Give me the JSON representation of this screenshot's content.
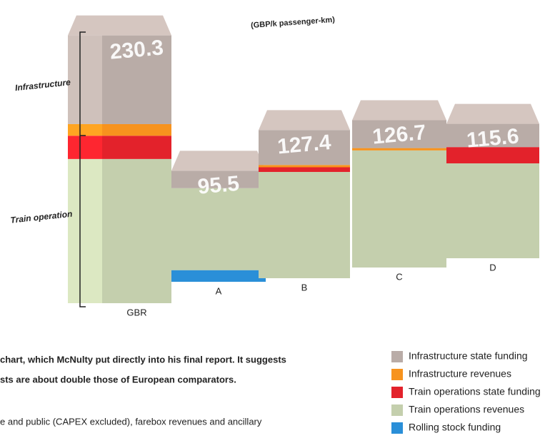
{
  "chart_data": {
    "type": "stacked-bar-3d",
    "unit": "(GBP/k passenger-km)",
    "categories": [
      "GBR",
      "A",
      "B",
      "C",
      "D"
    ],
    "totals": [
      230.3,
      95.5,
      127.4,
      126.7,
      115.6
    ],
    "series": [
      {
        "name": "Infrastructure state funding",
        "color": "#b9aca7",
        "values": [
          76.3,
          15,
          30,
          24,
          20
        ]
      },
      {
        "name": "Infrastructure revenues",
        "color": "#f7931e",
        "values": [
          10,
          0,
          2,
          2,
          0
        ]
      },
      {
        "name": "Train operations state funding",
        "color": "#e3222b",
        "values": [
          20,
          0,
          4,
          0,
          14
        ]
      },
      {
        "name": "Train operations revenues",
        "color": "#c4cfad",
        "values": [
          124,
          70.5,
          91.4,
          100.7,
          81.6
        ]
      },
      {
        "name": "Rolling stock funding",
        "color": "#2a8fd8",
        "values": [
          0,
          10,
          0,
          0,
          0
        ]
      }
    ],
    "group_labels": [
      "Infrastructure",
      "Train operation"
    ],
    "notes": [
      "chart, which McNulty put directly into his final report. It suggests",
      "sts are about double those of European comparators.",
      "e and public (CAPEX excluded), farebox revenues and ancillary"
    ]
  }
}
